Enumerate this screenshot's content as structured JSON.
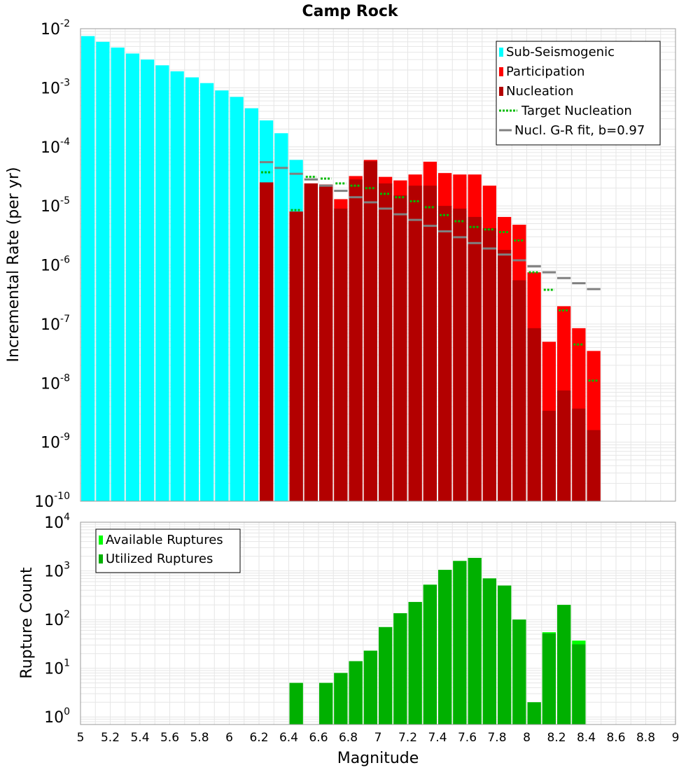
{
  "title": "Camp Rock",
  "xlabel": "Magnitude",
  "xticks": [
    "5",
    "5.2",
    "5.4",
    "5.6",
    "5.8",
    "6",
    "6.2",
    "6.4",
    "6.6",
    "6.8",
    "7",
    "7.2",
    "7.4",
    "7.6",
    "7.8",
    "8",
    "8.2",
    "8.4",
    "8.6",
    "8.8",
    "9"
  ],
  "chart_data": [
    {
      "type": "bar",
      "ylabel": "Incremental Rate (per yr)",
      "yscale": "log",
      "xlim": [
        5,
        9
      ],
      "ylim": [
        1e-10,
        0.01
      ],
      "ytick_exponents": [
        "-10",
        "-9",
        "-8",
        "-7",
        "-6",
        "-5",
        "-4",
        "-3",
        "-2"
      ],
      "grid": true,
      "legend_position": "top-right",
      "legend": [
        {
          "label": "Sub-Seismogenic",
          "kind": "box",
          "color": "#00ffff"
        },
        {
          "label": "Participation",
          "kind": "box",
          "color": "#ff0000"
        },
        {
          "label": "Nucleation",
          "kind": "box",
          "color": "#b30000"
        },
        {
          "label": "Target Nucleation",
          "kind": "dotted",
          "color": "#00bb00"
        },
        {
          "label": "Nucl. G-R fit, b=0.97",
          "kind": "line",
          "color": "#808080"
        }
      ],
      "bin_width": 0.1,
      "series": [
        {
          "key": "subseis",
          "color": "#00ffff",
          "x": [
            5.05,
            5.15,
            5.25,
            5.35,
            5.45,
            5.55,
            5.65,
            5.75,
            5.85,
            5.95,
            6.05,
            6.15,
            6.25,
            6.35,
            6.45
          ],
          "values": [
            0.0075,
            0.006,
            0.0048,
            0.0038,
            0.003,
            0.0024,
            0.0019,
            0.0015,
            0.0012,
            0.0009,
            0.0007,
            0.00045,
            0.00028,
            0.00017,
            6e-05
          ]
        },
        {
          "key": "participation",
          "color": "#ff0000",
          "x": [
            6.25,
            6.45,
            6.55,
            6.65,
            6.75,
            6.85,
            6.95,
            7.05,
            7.15,
            7.25,
            7.35,
            7.45,
            7.55,
            7.65,
            7.75,
            7.85,
            7.95,
            8.05,
            8.15,
            8.25,
            8.35,
            8.45
          ],
          "values": [
            2.5e-05,
            8e-06,
            2.4e-05,
            2.3e-05,
            1.3e-05,
            3.2e-05,
            6e-05,
            3.1e-05,
            2.7e-05,
            3.4e-05,
            5.6e-05,
            3.6e-05,
            3.4e-05,
            3.4e-05,
            2.2e-05,
            6.5e-06,
            4.8e-06,
            7.5e-07,
            5e-08,
            2e-07,
            8.5e-08,
            3.5e-08
          ]
        },
        {
          "key": "nucleation",
          "color": "#b30000",
          "x": [
            6.25,
            6.45,
            6.55,
            6.65,
            6.75,
            6.85,
            6.95,
            7.05,
            7.15,
            7.25,
            7.35,
            7.45,
            7.55,
            7.65,
            7.75,
            7.85,
            7.95,
            8.05,
            8.15,
            8.25,
            8.35,
            8.45
          ],
          "values": [
            2.5e-05,
            8e-06,
            2.4e-05,
            2.3e-05,
            9e-06,
            2.8e-05,
            5.7e-05,
            2.4e-05,
            1.5e-05,
            2.2e-05,
            2.2e-05,
            1e-05,
            9e-06,
            6.5e-06,
            4.2e-06,
            1.8e-06,
            5.5e-07,
            8.5e-08,
            3.4e-09,
            7.5e-09,
            3.7e-09,
            1.6e-09
          ]
        },
        {
          "key": "target",
          "color": "#00bb00",
          "x": [
            6.25,
            6.45,
            6.55,
            6.65,
            6.75,
            6.85,
            6.95,
            7.05,
            7.15,
            7.25,
            7.35,
            7.45,
            7.55,
            7.65,
            7.75,
            7.85,
            7.95,
            8.05,
            8.15,
            8.25,
            8.35,
            8.45
          ],
          "values": [
            3.7e-05,
            8.5e-06,
            3.1e-05,
            2.9e-05,
            2.4e-05,
            2.2e-05,
            2e-05,
            1.6e-05,
            1.4e-05,
            1.2e-05,
            9.5e-06,
            7e-06,
            5.5e-06,
            4.4e-06,
            4e-06,
            3.6e-06,
            2.6e-06,
            7.5e-07,
            3.8e-07,
            1.7e-07,
            4.5e-08,
            1.1e-08
          ]
        },
        {
          "key": "gr_fit",
          "color": "#808080",
          "x": [
            6.25,
            6.35,
            6.45,
            6.55,
            6.65,
            6.75,
            6.85,
            6.95,
            7.05,
            7.15,
            7.25,
            7.35,
            7.45,
            7.55,
            7.65,
            7.75,
            7.85,
            7.95,
            8.05,
            8.15,
            8.25,
            8.35,
            8.45
          ],
          "values": [
            5.5e-05,
            4.4e-05,
            3.5e-05,
            2.8e-05,
            2.2e-05,
            1.8e-05,
            1.4e-05,
            1.15e-05,
            9e-06,
            7.2e-06,
            5.8e-06,
            4.6e-06,
            3.7e-06,
            2.95e-06,
            2.35e-06,
            1.9e-06,
            1.5e-06,
            1.2e-06,
            9.5e-07,
            7.5e-07,
            6e-07,
            4.9e-07,
            3.9e-07
          ]
        }
      ]
    },
    {
      "type": "bar",
      "ylabel": "Rupture Count",
      "yscale": "log",
      "xlim": [
        5,
        9
      ],
      "ylim": [
        0.7,
        10000
      ],
      "ytick_exponents": [
        "0",
        "1",
        "2",
        "3",
        "4"
      ],
      "grid": true,
      "legend_position": "top-left",
      "legend": [
        {
          "label": "Available Ruptures",
          "kind": "box",
          "color": "#00ff00"
        },
        {
          "label": "Utilized Ruptures",
          "kind": "box",
          "color": "#00b000"
        }
      ],
      "bin_width": 0.1,
      "series": [
        {
          "key": "available",
          "color": "#00ff00",
          "x": [
            6.45,
            6.65,
            6.75,
            6.85,
            6.95,
            7.05,
            7.15,
            7.25,
            7.35,
            7.45,
            7.55,
            7.65,
            7.75,
            7.85,
            7.95,
            8.05,
            8.15,
            8.25,
            8.35
          ],
          "values": [
            5,
            5,
            8,
            14,
            23,
            70,
            135,
            230,
            520,
            1050,
            1600,
            1850,
            700,
            500,
            100,
            2,
            55,
            200,
            37
          ]
        },
        {
          "key": "utilized",
          "color": "#00b000",
          "x": [
            6.45,
            6.65,
            6.75,
            6.85,
            6.95,
            7.05,
            7.15,
            7.25,
            7.35,
            7.45,
            7.55,
            7.65,
            7.75,
            7.85,
            7.95,
            8.05,
            8.15,
            8.25,
            8.35
          ],
          "values": [
            5,
            5,
            8,
            14,
            23,
            70,
            135,
            230,
            520,
            1050,
            1600,
            1850,
            700,
            500,
            100,
            2,
            52,
            200,
            31
          ]
        }
      ]
    }
  ]
}
